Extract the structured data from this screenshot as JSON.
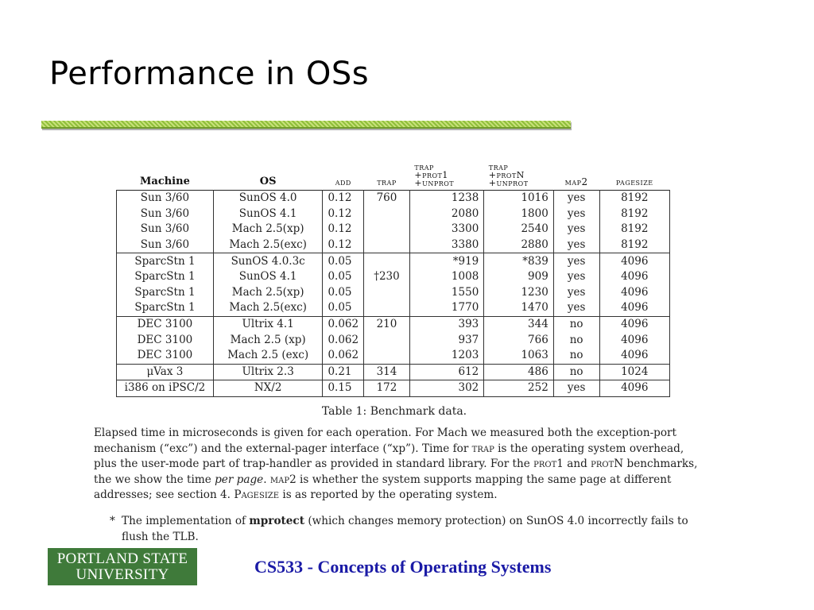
{
  "slide": {
    "title": "Performance in OSs",
    "course": "CS533 - Concepts of Operating Systems",
    "logo": {
      "line1": "PORTLAND STATE",
      "line2": "UNIVERSITY"
    }
  },
  "table": {
    "headers": {
      "machine": "Machine",
      "os": "OS",
      "add": "add",
      "trap": "trap",
      "prot1": [
        "trap",
        "+prot1",
        "+unprot"
      ],
      "protn": [
        "trap",
        "+protN",
        "+unprot"
      ],
      "map2": "map2",
      "pagesize": "pagesize"
    },
    "groups": [
      {
        "rows": [
          [
            "Sun 3/60",
            "SunOS 4.0",
            "0.12",
            "760",
            "1238",
            "1016",
            "yes",
            "8192"
          ],
          [
            "Sun 3/60",
            "SunOS 4.1",
            "0.12",
            "",
            "2080",
            "1800",
            "yes",
            "8192"
          ],
          [
            "Sun 3/60",
            "Mach 2.5(xp)",
            "0.12",
            "",
            "3300",
            "2540",
            "yes",
            "8192"
          ],
          [
            "Sun 3/60",
            "Mach 2.5(exc)",
            "0.12",
            "",
            "3380",
            "2880",
            "yes",
            "8192"
          ]
        ]
      },
      {
        "rows": [
          [
            "SparcStn 1",
            "SunOS 4.0.3c",
            "0.05",
            "",
            "*919",
            "*839",
            "yes",
            "4096"
          ],
          [
            "SparcStn 1",
            "SunOS 4.1",
            "0.05",
            "†230",
            "1008",
            "909",
            "yes",
            "4096"
          ],
          [
            "SparcStn 1",
            "Mach 2.5(xp)",
            "0.05",
            "",
            "1550",
            "1230",
            "yes",
            "4096"
          ],
          [
            "SparcStn 1",
            "Mach 2.5(exc)",
            "0.05",
            "",
            "1770",
            "1470",
            "yes",
            "4096"
          ]
        ]
      },
      {
        "rows": [
          [
            "DEC 3100",
            "Ultrix 4.1",
            "0.062",
            "210",
            "393",
            "344",
            "no",
            "4096"
          ],
          [
            "DEC 3100",
            "Mach 2.5 (xp)",
            "0.062",
            "",
            "937",
            "766",
            "no",
            "4096"
          ],
          [
            "DEC 3100",
            "Mach 2.5 (exc)",
            "0.062",
            "",
            "1203",
            "1063",
            "no",
            "4096"
          ]
        ]
      },
      {
        "rows": [
          [
            "μVax 3",
            "Ultrix 2.3",
            "0.21",
            "314",
            "612",
            "486",
            "no",
            "1024"
          ]
        ]
      },
      {
        "rows": [
          [
            "i386 on iPSC/2",
            "NX/2",
            "0.15",
            "172",
            "302",
            "252",
            "yes",
            "4096"
          ]
        ]
      }
    ],
    "caption": "Table 1: Benchmark data."
  },
  "description": {
    "s1": "Elapsed time in microseconds is given for each operation. For Mach we measured both the exception-port mechanism (“exc”) and the external-pager interface (“xp”). Time for ",
    "trap": "trap",
    "s2": " is the operating system overhead, plus the user-mode part of trap-handler as provided in standard library. For the ",
    "prot1": "prot1",
    "s3": " and ",
    "protn": "protN",
    "s4": " benchmarks, the we show the time ",
    "per_page": "per page",
    "s5": ". ",
    "map2": "map2",
    "s6": " is whether the system supports mapping the same page at different addresses; see section 4. ",
    "pagesize": "Pagesize",
    "s7": " is as reported by the operating system."
  },
  "footnote": {
    "mark": "*",
    "pre": "The implementation of ",
    "bold": "mprotect",
    "post": " (which changes memory protection) on SunOS 4.0 incorrectly fails to flush the TLB."
  }
}
